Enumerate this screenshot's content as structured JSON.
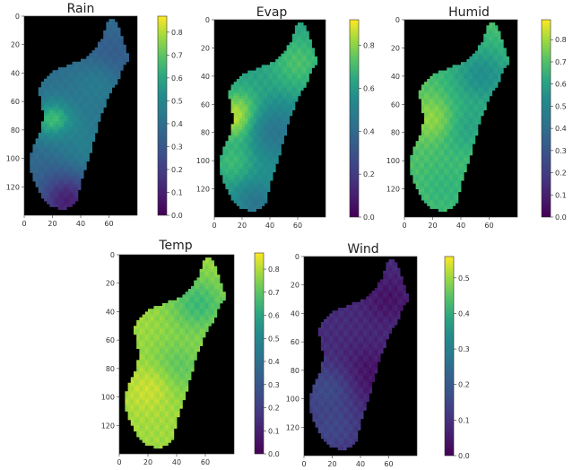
{
  "chart_data": [
    {
      "type": "heatmap",
      "title": "Rain",
      "xticks": [
        0,
        20,
        40,
        60
      ],
      "yticks": [
        0,
        20,
        40,
        60,
        80,
        100,
        120
      ],
      "xlim": [
        0,
        80
      ],
      "ylim": [
        140,
        0
      ],
      "colorbar_ticks": [
        0.0,
        0.1,
        0.2,
        0.3,
        0.4,
        0.5,
        0.6,
        0.7,
        0.8
      ],
      "colorbar_range": [
        0.0,
        0.87
      ],
      "cmap": "viridis",
      "base_value": 0.4,
      "hotspots": [
        {
          "x": 22,
          "y": 76,
          "r": 10,
          "v": 0.82
        },
        {
          "x": 35,
          "y": 95,
          "r": 18,
          "v": 0.48
        },
        {
          "x": 10,
          "y": 105,
          "r": 14,
          "v": 0.38
        },
        {
          "x": 60,
          "y": 30,
          "r": 15,
          "v": 0.3
        },
        {
          "x": 30,
          "y": 130,
          "r": 14,
          "v": 0.1
        },
        {
          "x": 50,
          "y": 50,
          "r": 14,
          "v": 0.45
        }
      ]
    },
    {
      "type": "heatmap",
      "title": "Evap",
      "xticks": [
        0,
        20,
        40,
        60
      ],
      "yticks": [
        0,
        20,
        40,
        60,
        80,
        100,
        120
      ],
      "xlim": [
        0,
        80
      ],
      "ylim": [
        140,
        0
      ],
      "colorbar_ticks": [
        0.0,
        0.2,
        0.4,
        0.6,
        0.8
      ],
      "colorbar_range": [
        0.0,
        0.92
      ],
      "cmap": "viridis",
      "base_value": 0.62,
      "hotspots": [
        {
          "x": 18,
          "y": 70,
          "r": 12,
          "v": 0.92
        },
        {
          "x": 45,
          "y": 80,
          "r": 16,
          "v": 0.45
        },
        {
          "x": 30,
          "y": 130,
          "r": 12,
          "v": 0.45
        },
        {
          "x": 60,
          "y": 30,
          "r": 14,
          "v": 0.72
        },
        {
          "x": 12,
          "y": 100,
          "r": 10,
          "v": 0.7
        }
      ]
    },
    {
      "type": "heatmap",
      "title": "Humid",
      "xticks": [
        0,
        20,
        40,
        60
      ],
      "yticks": [
        0,
        20,
        40,
        60,
        80,
        100,
        120
      ],
      "xlim": [
        0,
        80
      ],
      "ylim": [
        140,
        0
      ],
      "colorbar_ticks": [
        0.0,
        0.1,
        0.2,
        0.3,
        0.4,
        0.5,
        0.6,
        0.7,
        0.8
      ],
      "colorbar_range": [
        0.0,
        0.89
      ],
      "cmap": "viridis",
      "base_value": 0.7,
      "hotspots": [
        {
          "x": 55,
          "y": 40,
          "r": 16,
          "v": 0.55
        },
        {
          "x": 42,
          "y": 75,
          "r": 14,
          "v": 0.6
        },
        {
          "x": 18,
          "y": 70,
          "r": 12,
          "v": 0.78
        },
        {
          "x": 30,
          "y": 120,
          "r": 14,
          "v": 0.66
        }
      ]
    },
    {
      "type": "heatmap",
      "title": "Temp",
      "xticks": [
        0,
        20,
        40,
        60
      ],
      "yticks": [
        0,
        20,
        40,
        60,
        80,
        100,
        120
      ],
      "xlim": [
        0,
        80
      ],
      "ylim": [
        140,
        0
      ],
      "colorbar_ticks": [
        0.0,
        0.1,
        0.2,
        0.3,
        0.4,
        0.5,
        0.6,
        0.7,
        0.8
      ],
      "colorbar_range": [
        0.0,
        0.87
      ],
      "cmap": "viridis",
      "base_value": 0.78,
      "hotspots": [
        {
          "x": 55,
          "y": 35,
          "r": 14,
          "v": 0.66
        },
        {
          "x": 40,
          "y": 80,
          "r": 14,
          "v": 0.7
        },
        {
          "x": 20,
          "y": 95,
          "r": 12,
          "v": 0.82
        }
      ]
    },
    {
      "type": "heatmap",
      "title": "Wind",
      "xticks": [
        0,
        20,
        40,
        60
      ],
      "yticks": [
        0,
        20,
        40,
        60,
        80,
        100,
        120
      ],
      "xlim": [
        0,
        80
      ],
      "ylim": [
        140,
        0
      ],
      "colorbar_ticks": [
        0.0,
        0.1,
        0.2,
        0.3,
        0.4,
        0.5
      ],
      "colorbar_range": [
        0.0,
        0.56
      ],
      "cmap": "viridis",
      "base_value": 0.09,
      "hotspots": [
        {
          "x": 45,
          "y": 85,
          "r": 15,
          "v": 0.03
        },
        {
          "x": 60,
          "y": 30,
          "r": 12,
          "v": 0.04
        },
        {
          "x": 15,
          "y": 95,
          "r": 14,
          "v": 0.16
        },
        {
          "x": 20,
          "y": 120,
          "r": 14,
          "v": 0.15
        }
      ]
    }
  ]
}
